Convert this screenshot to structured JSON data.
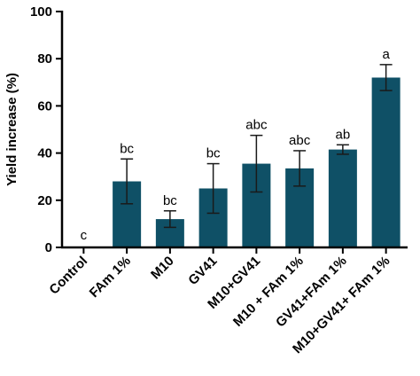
{
  "chart_data": {
    "type": "bar",
    "title": "",
    "xlabel": "",
    "ylabel": "Yield increase (%)",
    "ylim": [
      0,
      100
    ],
    "yticks": [
      0,
      20,
      40,
      60,
      80,
      100
    ],
    "grid": false,
    "bar_color": "#0f5066",
    "categories": [
      "Control",
      "FAm 1%",
      "M10",
      "GV41",
      "M10+GV41",
      "M10 + FAm 1%",
      "GV41+FAm 1%",
      "M10+GV41+ FAm 1%"
    ],
    "values": [
      0,
      28,
      12,
      25,
      35.5,
      33.5,
      41.5,
      72
    ],
    "errors": [
      0,
      9.5,
      3.5,
      10.5,
      12,
      7.5,
      2,
      5.5
    ],
    "significance_labels": [
      "c",
      "bc",
      "bc",
      "bc",
      "abc",
      "abc",
      "ab",
      "a"
    ]
  }
}
